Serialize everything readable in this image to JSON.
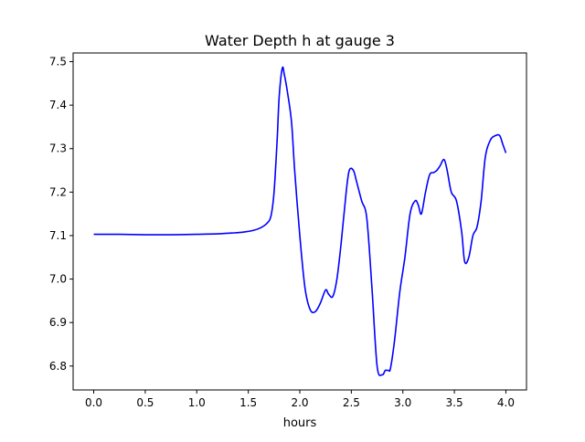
{
  "chart_data": {
    "type": "line",
    "title": "Water Depth h at gauge 3",
    "xlabel": "hours",
    "ylabel": "",
    "xlim": [
      -0.2,
      4.2
    ],
    "ylim": [
      6.745,
      7.52
    ],
    "xticks": [
      0.0,
      0.5,
      1.0,
      1.5,
      2.0,
      2.5,
      3.0,
      3.5,
      4.0
    ],
    "xtick_labels": [
      "0.0",
      "0.5",
      "1.0",
      "1.5",
      "2.0",
      "2.5",
      "3.0",
      "3.5",
      "4.0"
    ],
    "yticks": [
      6.8,
      6.9,
      7.0,
      7.1,
      7.2,
      7.3,
      7.4,
      7.5
    ],
    "ytick_labels": [
      "6.8",
      "6.9",
      "7.0",
      "7.1",
      "7.2",
      "7.3",
      "7.4",
      "7.5"
    ],
    "grid": false,
    "series": [
      {
        "color": "#0000ff",
        "x": [
          0.0,
          0.25,
          0.5,
          0.75,
          1.0,
          1.2,
          1.35,
          1.45,
          1.55,
          1.62,
          1.68,
          1.72,
          1.75,
          1.78,
          1.8,
          1.83,
          1.85,
          1.88,
          1.92,
          1.95,
          2.0,
          2.05,
          2.1,
          2.15,
          2.2,
          2.25,
          2.28,
          2.32,
          2.36,
          2.4,
          2.45,
          2.48,
          2.52,
          2.55,
          2.6,
          2.65,
          2.7,
          2.75,
          2.8,
          2.83,
          2.86,
          2.88,
          2.92,
          2.97,
          3.02,
          3.07,
          3.12,
          3.15,
          3.18,
          3.22,
          3.26,
          3.3,
          3.33,
          3.36,
          3.4,
          3.43,
          3.47,
          3.52,
          3.57,
          3.6,
          3.64,
          3.68,
          3.72,
          3.76,
          3.8,
          3.85,
          3.9,
          3.94,
          3.97,
          4.0
        ],
        "y": [
          7.103,
          7.103,
          7.102,
          7.102,
          7.103,
          7.104,
          7.106,
          7.108,
          7.112,
          7.118,
          7.128,
          7.145,
          7.2,
          7.32,
          7.42,
          7.485,
          7.47,
          7.43,
          7.36,
          7.25,
          7.1,
          6.98,
          6.93,
          6.925,
          6.945,
          6.975,
          6.965,
          6.96,
          7.0,
          7.08,
          7.2,
          7.25,
          7.25,
          7.225,
          7.18,
          7.14,
          6.98,
          6.8,
          6.78,
          6.79,
          6.79,
          6.795,
          6.86,
          6.97,
          7.05,
          7.15,
          7.18,
          7.17,
          7.15,
          7.2,
          7.24,
          7.245,
          7.25,
          7.26,
          7.275,
          7.25,
          7.2,
          7.18,
          7.11,
          7.04,
          7.05,
          7.1,
          7.12,
          7.18,
          7.28,
          7.32,
          7.33,
          7.33,
          7.31,
          7.29
        ]
      }
    ]
  }
}
